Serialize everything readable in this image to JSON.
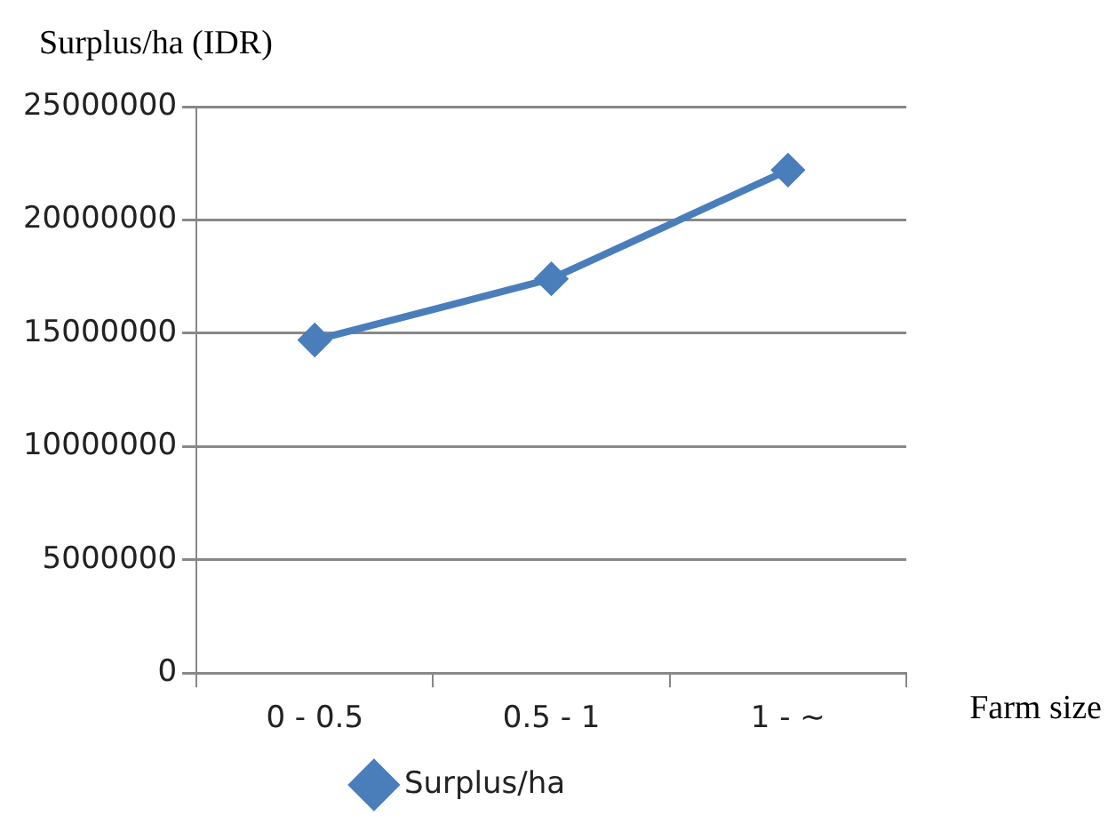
{
  "chart_data": {
    "type": "line",
    "ylabel": "Surplus/ha (IDR)",
    "xlabel": "Farm size",
    "categories": [
      "0 - 0.5",
      "0.5 - 1",
      "1 - ~"
    ],
    "series": [
      {
        "name": "Surplus/ha",
        "color": "#4a7ebb",
        "values": [
          14700000,
          17400000,
          22200000
        ]
      }
    ],
    "ylim": [
      0,
      25000000
    ],
    "yticks": [
      0,
      5000000,
      10000000,
      15000000,
      20000000,
      25000000
    ],
    "grid": "y",
    "legend": "bottom",
    "marker": "diamond",
    "line_style": "solid"
  }
}
